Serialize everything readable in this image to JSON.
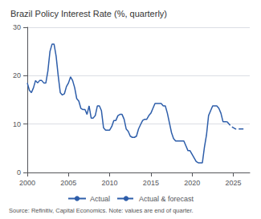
{
  "chart_data": {
    "type": "line",
    "title": "Brazil Policy Interest Rate (%, quarterly)",
    "annotations": [
      "Source: Refinitiv, Capital Economics. Note: values are end of quarter."
    ],
    "xlim": [
      2000,
      2027
    ],
    "xticks": [
      2000,
      2005,
      2010,
      2015,
      2020,
      2025
    ],
    "ylim": [
      0,
      30
    ],
    "yticks": [
      0,
      10,
      20,
      30
    ],
    "grid": true,
    "legend": "bottom",
    "series": [
      {
        "name": "Actual",
        "color": "#2e5eaa",
        "line_style": "solid",
        "x": [
          2000.0,
          2000.25,
          2000.5,
          2000.75,
          2001.0,
          2001.25,
          2001.5,
          2001.75,
          2002.0,
          2002.25,
          2002.5,
          2002.75,
          2003.0,
          2003.25,
          2003.5,
          2003.75,
          2004.0,
          2004.25,
          2004.5,
          2004.75,
          2005.0,
          2005.25,
          2005.5,
          2005.75,
          2006.0,
          2006.25,
          2006.5,
          2006.75,
          2007.0,
          2007.25,
          2007.5,
          2007.75,
          2008.0,
          2008.25,
          2008.5,
          2008.75,
          2009.0,
          2009.25,
          2009.5,
          2009.75,
          2010.0,
          2010.25,
          2010.5,
          2010.75,
          2011.0,
          2011.25,
          2011.5,
          2011.75,
          2012.0,
          2012.25,
          2012.5,
          2012.75,
          2013.0,
          2013.25,
          2013.5,
          2013.75,
          2014.0,
          2014.25,
          2014.5,
          2014.75,
          2015.0,
          2015.25,
          2015.5,
          2015.75,
          2016.0,
          2016.25,
          2016.5,
          2016.75,
          2017.0,
          2017.25,
          2017.5,
          2017.75,
          2018.0,
          2018.25,
          2018.5,
          2018.75,
          2019.0,
          2019.25,
          2019.5,
          2019.75,
          2020.0,
          2020.25,
          2020.5,
          2020.75,
          2021.0,
          2021.25,
          2021.5,
          2021.75,
          2022.0,
          2022.25,
          2022.5,
          2022.75,
          2023.0,
          2023.25,
          2023.5,
          2023.75,
          2024.0,
          2024.25
        ],
        "values": [
          18.5,
          17.0,
          16.5,
          17.5,
          19.0,
          18.5,
          19.0,
          19.0,
          18.5,
          18.5,
          21.0,
          25.0,
          26.5,
          26.5,
          24.0,
          20.0,
          16.5,
          16.0,
          16.25,
          17.75,
          18.5,
          19.75,
          19.0,
          17.5,
          15.25,
          14.75,
          13.25,
          13.0,
          13.0,
          12.0,
          13.75,
          11.25,
          11.25,
          11.75,
          13.75,
          13.75,
          12.75,
          9.25,
          8.75,
          8.75,
          8.75,
          9.5,
          10.75,
          10.75,
          11.75,
          12.0,
          12.0,
          11.0,
          9.0,
          8.5,
          7.5,
          7.25,
          7.25,
          7.5,
          9.0,
          9.9,
          10.75,
          11.0,
          11.0,
          11.75,
          12.25,
          13.25,
          14.25,
          14.25,
          14.25,
          14.25,
          13.75,
          13.75,
          12.25,
          10.25,
          8.25,
          7.0,
          6.5,
          6.5,
          6.5,
          6.5,
          6.5,
          5.5,
          4.5,
          4.5,
          3.75,
          3.0,
          2.25,
          2.0,
          2.0,
          2.0,
          5.25,
          7.75,
          11.75,
          12.75,
          13.75,
          13.75,
          13.75,
          13.25,
          12.25,
          10.5,
          10.5,
          10.5
        ]
      },
      {
        "name": "Actual & forecast",
        "color": "#2e5eaa",
        "line_style": "dashed",
        "x": [
          2024.25,
          2024.5,
          2024.75,
          2025.0,
          2025.25,
          2025.5,
          2025.75,
          2026.0,
          2026.25,
          2026.5
        ],
        "values": [
          10.5,
          10.0,
          9.5,
          9.25,
          9.0,
          9.0,
          9.0,
          9.0,
          9.0,
          9.0
        ]
      }
    ]
  }
}
